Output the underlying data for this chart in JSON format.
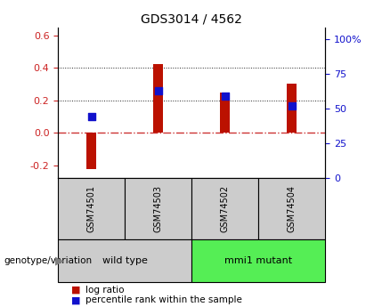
{
  "title": "GDS3014 / 4562",
  "samples": [
    "GSM74501",
    "GSM74503",
    "GSM74502",
    "GSM74504"
  ],
  "log_ratios": [
    -0.222,
    0.422,
    0.248,
    0.302
  ],
  "percentile_ranks": [
    44,
    63,
    59,
    52
  ],
  "left_ylim": [
    -0.28,
    0.65
  ],
  "left_yticks": [
    -0.2,
    0.0,
    0.2,
    0.4,
    0.6
  ],
  "right_ylim": [
    0,
    108.33
  ],
  "right_yticks": [
    0,
    25,
    50,
    75,
    100
  ],
  "right_yticklabels": [
    "0",
    "25",
    "50",
    "75",
    "100%"
  ],
  "bar_color": "#bb1100",
  "dot_color": "#1111cc",
  "groups": [
    {
      "label": "wild type",
      "indices": [
        0,
        1
      ],
      "color": "#cccccc"
    },
    {
      "label": "mmi1 mutant",
      "indices": [
        2,
        3
      ],
      "color": "#55ee55"
    }
  ],
  "hline_color": "#cc3333",
  "dotted_color": "#222222",
  "legend_bar_label": "log ratio",
  "legend_dot_label": "percentile rank within the sample",
  "genotype_label": "genotype/variation"
}
